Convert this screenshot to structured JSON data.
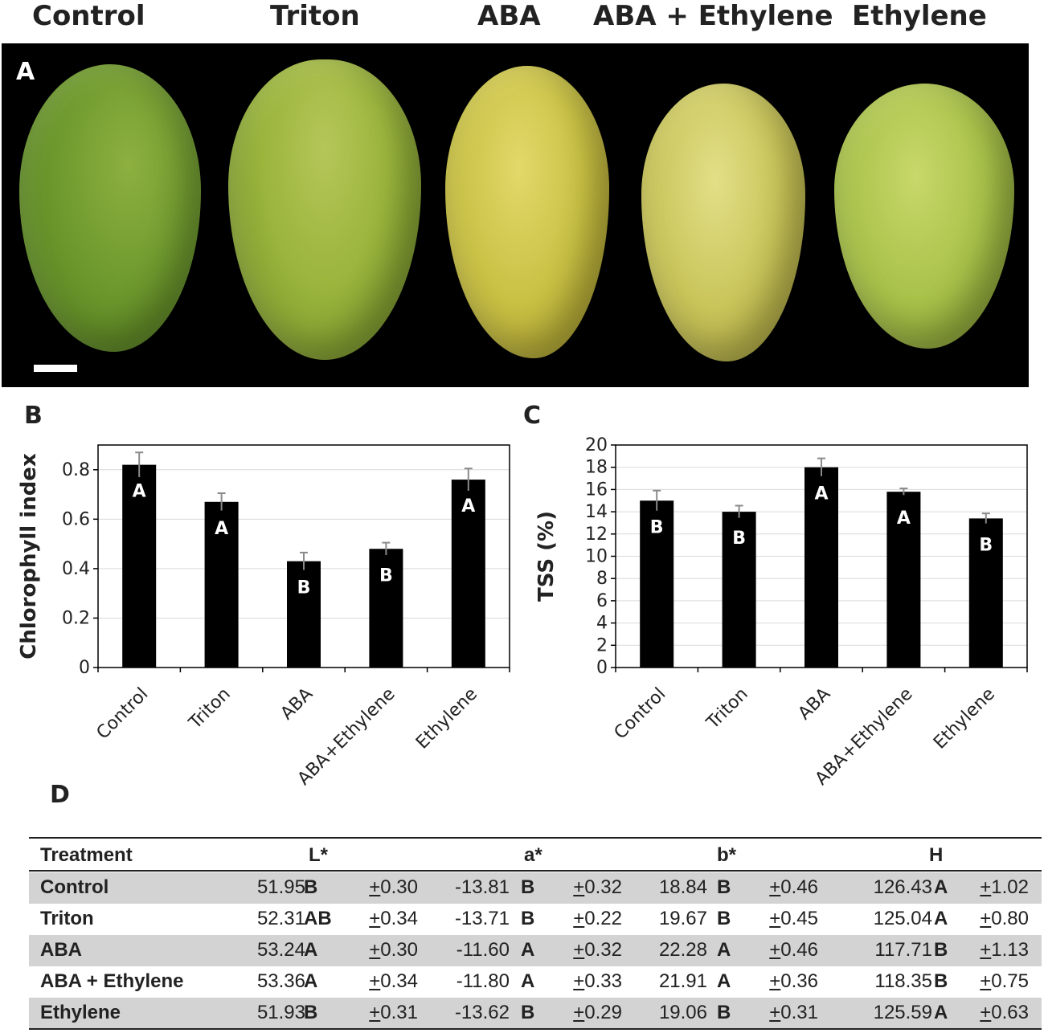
{
  "headers": [
    "Control",
    "Triton",
    "ABA",
    "ABA + Ethylene",
    "Ethylene"
  ],
  "panels": {
    "a": "A",
    "b": "B",
    "c": "C",
    "d": "D"
  },
  "fruit_colors": [
    "#6f9a2e",
    "#9bb53d",
    "#c8c144",
    "#c9c55a",
    "#a9c24a"
  ],
  "chart_data": [
    {
      "type": "bar",
      "categories": [
        "Control",
        "Triton",
        "ABA",
        "ABA+Ethylene",
        "Ethylene"
      ],
      "values": [
        0.82,
        0.67,
        0.43,
        0.48,
        0.76
      ],
      "errors": [
        0.05,
        0.035,
        0.035,
        0.025,
        0.045
      ],
      "letters": [
        "A",
        "A",
        "B",
        "B",
        "A"
      ],
      "ylabel": "Chlorophyll index",
      "ylim": [
        0,
        0.9
      ],
      "yticks": [
        "0",
        "0.2",
        "0.4",
        "0.6",
        "0.8"
      ],
      "grid": true,
      "bar_color": "#000000"
    },
    {
      "type": "bar",
      "categories": [
        "Control",
        "Triton",
        "ABA",
        "ABA+Ethylene",
        "Ethylene"
      ],
      "values": [
        15.0,
        14.0,
        18.0,
        15.8,
        13.4
      ],
      "errors": [
        0.9,
        0.55,
        0.8,
        0.3,
        0.45
      ],
      "letters": [
        "B",
        "B",
        "A",
        "A",
        "B"
      ],
      "ylabel": "TSS (%)",
      "ylim": [
        0,
        20
      ],
      "yticks": [
        "0",
        "2",
        "4",
        "6",
        "8",
        "10",
        "12",
        "14",
        "16",
        "18",
        "20"
      ],
      "grid": true,
      "bar_color": "#000000"
    }
  ],
  "table": {
    "columns": [
      "Treatment",
      "L*",
      "a*",
      "b*",
      "H"
    ],
    "rows": [
      {
        "treatment": "Control",
        "L": "51.95",
        "L_g": "B",
        "L_se": "+0.30",
        "a": "-13.81",
        "a_g": "B",
        "a_se": "+0.32",
        "b": "18.84",
        "b_g": "B",
        "b_se": "+0.46",
        "H": "126.43",
        "H_g": "A",
        "H_se": "+1.02"
      },
      {
        "treatment": "Triton",
        "L": "52.31",
        "L_g": "AB",
        "L_se": "+0.34",
        "a": "-13.71",
        "a_g": "B",
        "a_se": "+0.22",
        "b": "19.67",
        "b_g": "B",
        "b_se": "+0.45",
        "H": "125.04",
        "H_g": "A",
        "H_se": "+0.80"
      },
      {
        "treatment": "ABA",
        "L": "53.24",
        "L_g": "A",
        "L_se": "+0.30",
        "a": "-11.60",
        "a_g": "A",
        "a_se": "+0.32",
        "b": "22.28",
        "b_g": "A",
        "b_se": "+0.46",
        "H": "117.71",
        "H_g": "B",
        "H_se": "+1.13"
      },
      {
        "treatment": "ABA + Ethylene",
        "L": "53.36",
        "L_g": "A",
        "L_se": "+0.34",
        "a": "-11.80",
        "a_g": "A",
        "a_se": "+0.33",
        "b": "21.91",
        "b_g": "A",
        "b_se": "+0.36",
        "H": "118.35",
        "H_g": "B",
        "H_se": "+0.75"
      },
      {
        "treatment": "Ethylene",
        "L": "51.93",
        "L_g": "B",
        "L_se": "+0.31",
        "a": "-13.62",
        "a_g": "B",
        "a_se": "+0.29",
        "b": "19.06",
        "b_g": "B",
        "b_se": "+0.31",
        "H": "125.59",
        "H_g": "A",
        "H_se": "+0.63"
      }
    ]
  }
}
